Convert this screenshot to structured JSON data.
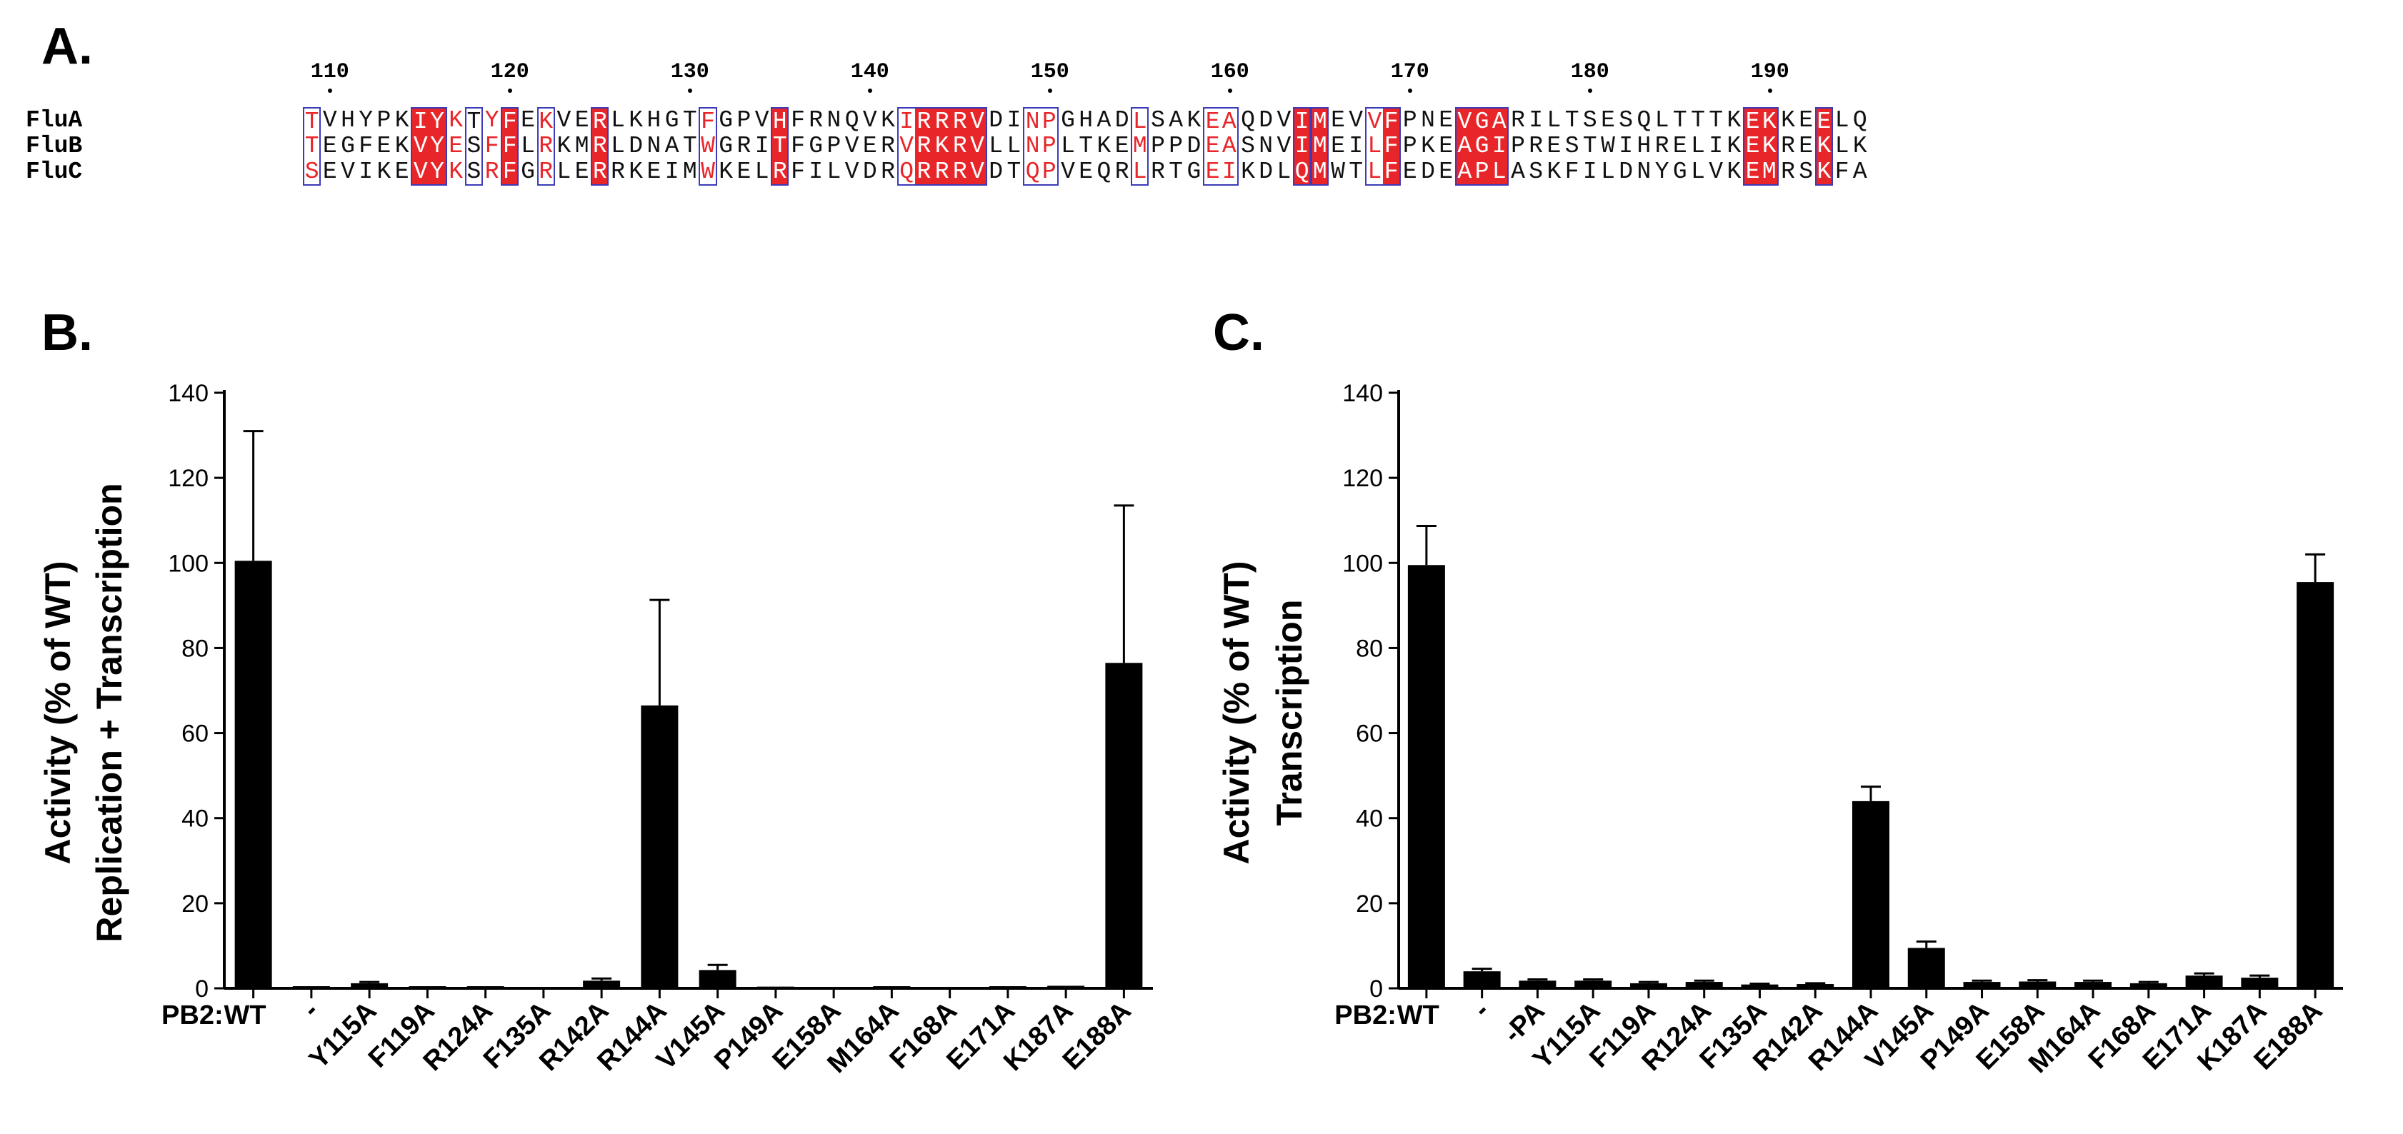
{
  "panels": {
    "a": "A.",
    "b": "B.",
    "c": "C."
  },
  "alignment": {
    "ruler": [
      {
        "pos": 110,
        "label": "110"
      },
      {
        "pos": 120,
        "label": "120"
      },
      {
        "pos": 130,
        "label": "130"
      },
      {
        "pos": 140,
        "label": "140"
      },
      {
        "pos": 150,
        "label": "150"
      },
      {
        "pos": 160,
        "label": "160"
      },
      {
        "pos": 170,
        "label": "170"
      },
      {
        "pos": 180,
        "label": "180"
      },
      {
        "pos": 190,
        "label": "190"
      }
    ],
    "start": 109,
    "sequences": [
      {
        "name": "FluA",
        "seq": "TVHYPKIYKTYFEKVERLKHGTFGPVHFRNQVKIRRRVDINPGHADLSAKEAQDVIMEVVFPNEVGARILTSESQLTTTKEKKEELQ"
      },
      {
        "name": "FluB",
        "seq": "TEGFEKVYESFFLRKMRLDNATWGRITFGPVERVRKRVLLNPLTKEMPPDEASNVIMEILFPKEAGIPRESTWIHRELIKEKREKLK"
      },
      {
        "name": "FluC",
        "seq": "SEVIKEVYKSRFGRLERRKEIMWKELRFILVDRQRRRVDTQPVEQRLRTGEIKDLQMWTLFEDEAPLASKFILDNYGLVKEMRSKFA"
      }
    ],
    "strict": [
      6,
      7,
      11,
      16,
      26,
      34,
      35,
      36,
      37,
      55,
      56,
      60,
      64,
      65,
      66,
      80,
      81,
      84
    ],
    "similar": [
      0,
      8,
      10,
      13,
      22,
      26,
      33,
      40,
      41,
      46,
      50,
      51,
      55,
      59,
      60,
      64,
      65,
      66,
      84
    ],
    "blocks": [
      [
        0,
        0
      ],
      [
        6,
        7
      ],
      [
        9,
        9
      ],
      [
        11,
        11
      ],
      [
        13,
        13
      ],
      [
        16,
        16
      ],
      [
        22,
        22
      ],
      [
        26,
        26
      ],
      [
        33,
        37
      ],
      [
        40,
        41
      ],
      [
        46,
        46
      ],
      [
        50,
        51
      ],
      [
        55,
        55
      ],
      [
        56,
        56
      ],
      [
        59,
        60
      ],
      [
        64,
        66
      ],
      [
        80,
        81
      ],
      [
        84,
        84
      ]
    ]
  },
  "chart_data": [
    {
      "type": "bar",
      "title": "",
      "xlabel": "",
      "ylabel": "Activity (% of  WT)",
      "ylabel2": "Replication + Transcription",
      "x_prefix": "PB2:",
      "ylim": [
        0,
        140
      ],
      "yticks": [
        "0",
        "20",
        "40",
        "60",
        "80",
        "100",
        "120",
        "140"
      ],
      "categories": [
        "WT",
        "-",
        "Y115A",
        "F119A",
        "R124A",
        "F135A",
        "R142A",
        "R144A",
        "V145A",
        "P149A",
        "E158A",
        "M164A",
        "F168A",
        "E171A",
        "K187A",
        "E188A"
      ],
      "values": [
        100.5,
        0.5,
        1.2,
        0.5,
        0.5,
        0.3,
        1.8,
        66.5,
        4.3,
        0.4,
        0.3,
        0.5,
        0.3,
        0.5,
        0.6,
        76.5
      ],
      "errors": [
        30.5,
        0,
        0.3,
        0,
        0,
        0,
        0.5,
        24.8,
        1.2,
        0,
        0,
        0,
        0,
        0,
        0,
        37
      ]
    },
    {
      "type": "bar",
      "title": "",
      "xlabel": "",
      "ylabel": "Activity (% of WT)",
      "ylabel2": "Transcription",
      "x_prefix": "PB2:",
      "ylim": [
        0,
        140
      ],
      "yticks": [
        "0",
        "20",
        "40",
        "60",
        "80",
        "100",
        "120",
        "140"
      ],
      "categories": [
        "WT",
        "-",
        "-PA",
        "Y115A",
        "F119A",
        "R124A",
        "F135A",
        "R142A",
        "R144A",
        "V145A",
        "P149A",
        "E158A",
        "M164A",
        "F168A",
        "E171A",
        "K187A",
        "E188A"
      ],
      "values": [
        99.5,
        4.0,
        1.8,
        1.8,
        1.2,
        1.5,
        0.9,
        1.0,
        44.0,
        9.5,
        1.5,
        1.6,
        1.5,
        1.2,
        3.0,
        2.5,
        95.5
      ],
      "errors": [
        9.2,
        0.6,
        0.3,
        0.3,
        0.3,
        0.3,
        0.2,
        0.2,
        3.4,
        1.5,
        0.3,
        0.3,
        0.3,
        0.3,
        0.5,
        0.5,
        6.5
      ]
    }
  ]
}
